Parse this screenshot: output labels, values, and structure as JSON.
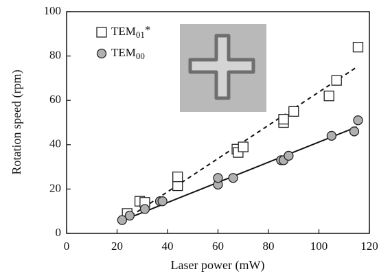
{
  "chart_data": {
    "type": "scatter",
    "x_label": "Laser power (mW)",
    "y_label": "Rotation speed (rpm)",
    "xlim": [
      0,
      120
    ],
    "xticks": [
      0,
      20,
      40,
      60,
      80,
      100,
      120
    ],
    "ylim": [
      0,
      100
    ],
    "yticks": [
      0,
      20,
      40,
      60,
      80,
      100
    ],
    "series": [
      {
        "name": "TEM01*",
        "marker": "square",
        "color": "#ffffff",
        "x": [
          24,
          29,
          31,
          44,
          44,
          67.5,
          68,
          70,
          86,
          86,
          90,
          104,
          107,
          115.5
        ],
        "values": [
          9,
          14.5,
          14,
          21.5,
          25.5,
          38,
          36.5,
          39,
          50,
          51.5,
          55,
          62,
          69,
          84
        ]
      },
      {
        "name": "TEM00",
        "marker": "circle",
        "color": "#b0b0b0",
        "x": [
          22,
          25,
          31,
          37,
          38,
          60,
          60,
          66,
          85,
          86,
          88,
          105,
          114,
          115.5
        ],
        "values": [
          6,
          8,
          11,
          14.5,
          14.5,
          22,
          25,
          25,
          33,
          33,
          35,
          44,
          46,
          51
        ]
      }
    ],
    "fit_lines": [
      {
        "style": "dashed",
        "x": [
          23,
          115
        ],
        "values": [
          6,
          75
        ]
      },
      {
        "style": "solid",
        "x": [
          21.5,
          115
        ],
        "values": [
          5.5,
          48
        ]
      }
    ]
  }
}
